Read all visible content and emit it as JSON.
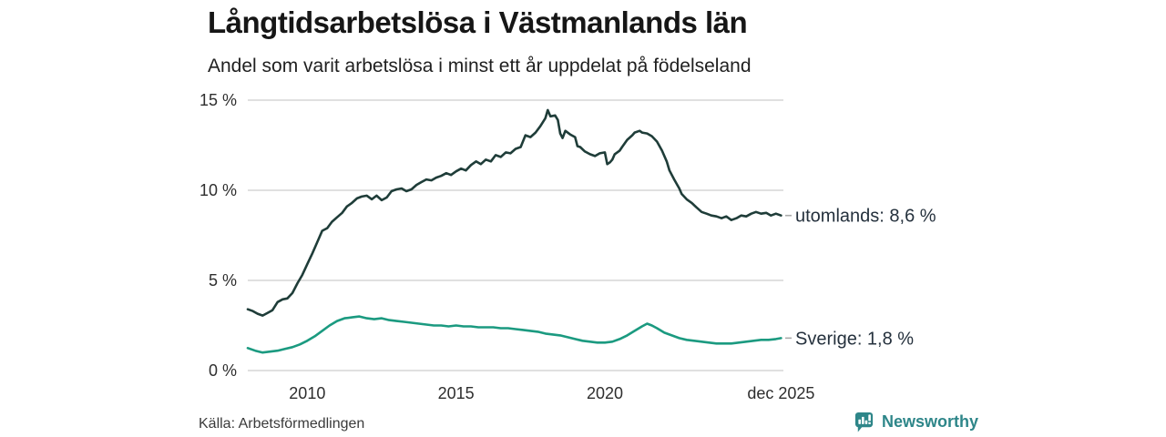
{
  "chart": {
    "title": "Långtidsarbetslösa i Västmanlands län",
    "subtitle": "Andel som varit arbetslösa i minst ett år uppdelat på födelseland",
    "source": "Källa: Arbetsförmedlingen",
    "brand": {
      "name": "Newsworthy",
      "color": "#2e8689",
      "icon": "bar-chart-speech-bubble-icon"
    }
  },
  "chart_data": {
    "type": "line",
    "title": "Långtidsarbetslösa i Västmanlands län",
    "subtitle": "Andel som varit arbetslösa i minst ett år uppdelat på födelseland",
    "x_domain": [
      2008,
      2026
    ],
    "y_domain": [
      0,
      15
    ],
    "grid": true,
    "legend_position": "right-of-line-ends",
    "colors": {
      "gridline": "#e0e0e0",
      "axis_text": "#2e2e2e",
      "end_label_text": "#25313d",
      "end_dash": "#aaaaaa"
    },
    "y_ticks": [
      {
        "value": 0,
        "label": "0 %"
      },
      {
        "value": 5,
        "label": "5 %"
      },
      {
        "value": 10,
        "label": "10 %"
      },
      {
        "value": 15,
        "label": "15 %"
      }
    ],
    "x_ticks": [
      {
        "value": 2010,
        "label": "2010"
      },
      {
        "value": 2015,
        "label": "2015"
      },
      {
        "value": 2020,
        "label": "2020"
      },
      {
        "value": 2025.92,
        "label": "dec 2025"
      }
    ],
    "series": [
      {
        "name": "utomlands",
        "end_label": "utomlands: 8,6 %",
        "end_value_label": "8,6 %",
        "color": "#1f3d39",
        "x": [
          2008.0,
          2008.17,
          2008.33,
          2008.5,
          2008.67,
          2008.83,
          2009.0,
          2009.17,
          2009.33,
          2009.5,
          2009.67,
          2009.83,
          2010.0,
          2010.17,
          2010.33,
          2010.5,
          2010.67,
          2010.83,
          2011.0,
          2011.17,
          2011.33,
          2011.5,
          2011.67,
          2011.83,
          2012.0,
          2012.17,
          2012.33,
          2012.5,
          2012.67,
          2012.83,
          2013.0,
          2013.17,
          2013.33,
          2013.5,
          2013.67,
          2013.83,
          2014.0,
          2014.17,
          2014.33,
          2014.5,
          2014.67,
          2014.83,
          2015.0,
          2015.17,
          2015.33,
          2015.5,
          2015.67,
          2015.83,
          2016.0,
          2016.17,
          2016.33,
          2016.5,
          2016.67,
          2016.83,
          2017.0,
          2017.17,
          2017.33,
          2017.5,
          2017.67,
          2017.83,
          2018.0,
          2018.08,
          2018.17,
          2018.33,
          2018.42,
          2018.5,
          2018.58,
          2018.67,
          2018.83,
          2019.0,
          2019.08,
          2019.17,
          2019.33,
          2019.5,
          2019.67,
          2019.83,
          2020.0,
          2020.08,
          2020.17,
          2020.25,
          2020.33,
          2020.5,
          2020.58,
          2020.75,
          2020.92,
          2021.0,
          2021.17,
          2021.25,
          2021.42,
          2021.58,
          2021.75,
          2021.92,
          2022.08,
          2022.17,
          2022.33,
          2022.5,
          2022.58,
          2022.75,
          2022.92,
          2023.08,
          2023.25,
          2023.42,
          2023.58,
          2023.75,
          2023.92,
          2024.08,
          2024.25,
          2024.42,
          2024.58,
          2024.75,
          2024.92,
          2025.08,
          2025.25,
          2025.42,
          2025.58,
          2025.75,
          2025.92
        ],
        "values": [
          3.4,
          3.3,
          3.15,
          3.05,
          3.2,
          3.35,
          3.8,
          3.95,
          4.0,
          4.3,
          4.85,
          5.3,
          5.9,
          6.5,
          7.1,
          7.75,
          7.9,
          8.25,
          8.5,
          8.75,
          9.1,
          9.3,
          9.55,
          9.65,
          9.7,
          9.5,
          9.7,
          9.45,
          9.6,
          9.95,
          10.05,
          10.1,
          9.95,
          10.05,
          10.3,
          10.45,
          10.6,
          10.55,
          10.7,
          10.8,
          10.95,
          10.85,
          11.05,
          11.2,
          11.1,
          11.4,
          11.6,
          11.45,
          11.7,
          11.6,
          11.95,
          11.85,
          12.1,
          12.05,
          12.3,
          12.4,
          13.05,
          12.95,
          13.2,
          13.55,
          14.0,
          14.45,
          14.1,
          14.15,
          13.9,
          13.15,
          12.9,
          13.3,
          13.1,
          12.95,
          12.45,
          12.4,
          12.15,
          12.0,
          11.9,
          12.05,
          12.1,
          11.45,
          11.55,
          11.7,
          12.0,
          12.2,
          12.4,
          12.8,
          13.05,
          13.2,
          13.3,
          13.2,
          13.15,
          13.0,
          12.7,
          12.2,
          11.6,
          11.1,
          10.6,
          10.1,
          9.8,
          9.5,
          9.3,
          9.05,
          8.8,
          8.7,
          8.6,
          8.55,
          8.45,
          8.55,
          8.35,
          8.45,
          8.6,
          8.55,
          8.7,
          8.8,
          8.7,
          8.75,
          8.6,
          8.7,
          8.6
        ]
      },
      {
        "name": "Sverige",
        "end_label": "Sverige: 1,8 %",
        "end_value_label": "1,8 %",
        "color": "#1b9a80",
        "x": [
          2008.0,
          2008.25,
          2008.5,
          2008.75,
          2009.0,
          2009.25,
          2009.5,
          2009.75,
          2010.0,
          2010.25,
          2010.5,
          2010.75,
          2011.0,
          2011.25,
          2011.5,
          2011.75,
          2012.0,
          2012.25,
          2012.5,
          2012.75,
          2013.0,
          2013.25,
          2013.5,
          2013.75,
          2014.0,
          2014.25,
          2014.5,
          2014.75,
          2015.0,
          2015.25,
          2015.5,
          2015.75,
          2016.0,
          2016.25,
          2016.5,
          2016.75,
          2017.0,
          2017.25,
          2017.5,
          2017.75,
          2018.0,
          2018.25,
          2018.5,
          2018.75,
          2019.0,
          2019.25,
          2019.5,
          2019.75,
          2020.0,
          2020.25,
          2020.5,
          2020.75,
          2021.0,
          2021.25,
          2021.42,
          2021.58,
          2021.75,
          2022.0,
          2022.25,
          2022.5,
          2022.75,
          2023.0,
          2023.25,
          2023.5,
          2023.75,
          2024.0,
          2024.25,
          2024.5,
          2024.75,
          2025.0,
          2025.25,
          2025.5,
          2025.75,
          2025.92
        ],
        "values": [
          1.25,
          1.1,
          1.0,
          1.05,
          1.1,
          1.2,
          1.3,
          1.45,
          1.65,
          1.9,
          2.2,
          2.5,
          2.75,
          2.9,
          2.95,
          3.0,
          2.9,
          2.85,
          2.9,
          2.8,
          2.75,
          2.7,
          2.65,
          2.6,
          2.55,
          2.5,
          2.5,
          2.45,
          2.5,
          2.45,
          2.45,
          2.4,
          2.4,
          2.4,
          2.35,
          2.35,
          2.3,
          2.25,
          2.2,
          2.15,
          2.05,
          2.0,
          1.95,
          1.85,
          1.75,
          1.65,
          1.6,
          1.55,
          1.55,
          1.6,
          1.75,
          1.95,
          2.2,
          2.45,
          2.6,
          2.5,
          2.35,
          2.1,
          1.95,
          1.8,
          1.7,
          1.65,
          1.6,
          1.55,
          1.5,
          1.5,
          1.5,
          1.55,
          1.6,
          1.65,
          1.7,
          1.7,
          1.75,
          1.8
        ]
      }
    ]
  }
}
